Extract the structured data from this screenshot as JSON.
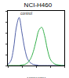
{
  "chart_data": {
    "type": "line",
    "title": "NCI-H460",
    "log": "x",
    "x": [
      1,
      1.6,
      2.5,
      4,
      6.3,
      10,
      16,
      25,
      40,
      63,
      100,
      160,
      250,
      400,
      630,
      1000,
      1600,
      2500,
      4000,
      6300,
      10000
    ],
    "series": [
      {
        "name": "control",
        "color": "#5060a8",
        "line_style": "solid",
        "values": [
          2,
          8,
          30,
          70,
          88,
          60,
          30,
          12,
          5,
          2,
          1,
          0,
          0,
          0,
          0,
          0,
          0,
          0,
          0,
          0,
          0
        ]
      },
      {
        "color": "#33b04a",
        "line_style": "solid",
        "values": [
          0,
          0,
          0,
          0,
          0,
          1,
          2,
          5,
          12,
          25,
          45,
          65,
          70,
          55,
          30,
          12,
          5,
          2,
          1,
          0,
          0
        ]
      }
    ],
    "xlim": [
      1,
      10000
    ],
    "xticks": [
      1,
      10,
      100,
      1000,
      10000
    ],
    "ylim": [
      0,
      100
    ],
    "yticks": [
      0,
      20,
      40,
      60,
      80,
      100
    ],
    "tick_labels": false,
    "grid": false,
    "annotations": [
      "129583701"
    ]
  }
}
